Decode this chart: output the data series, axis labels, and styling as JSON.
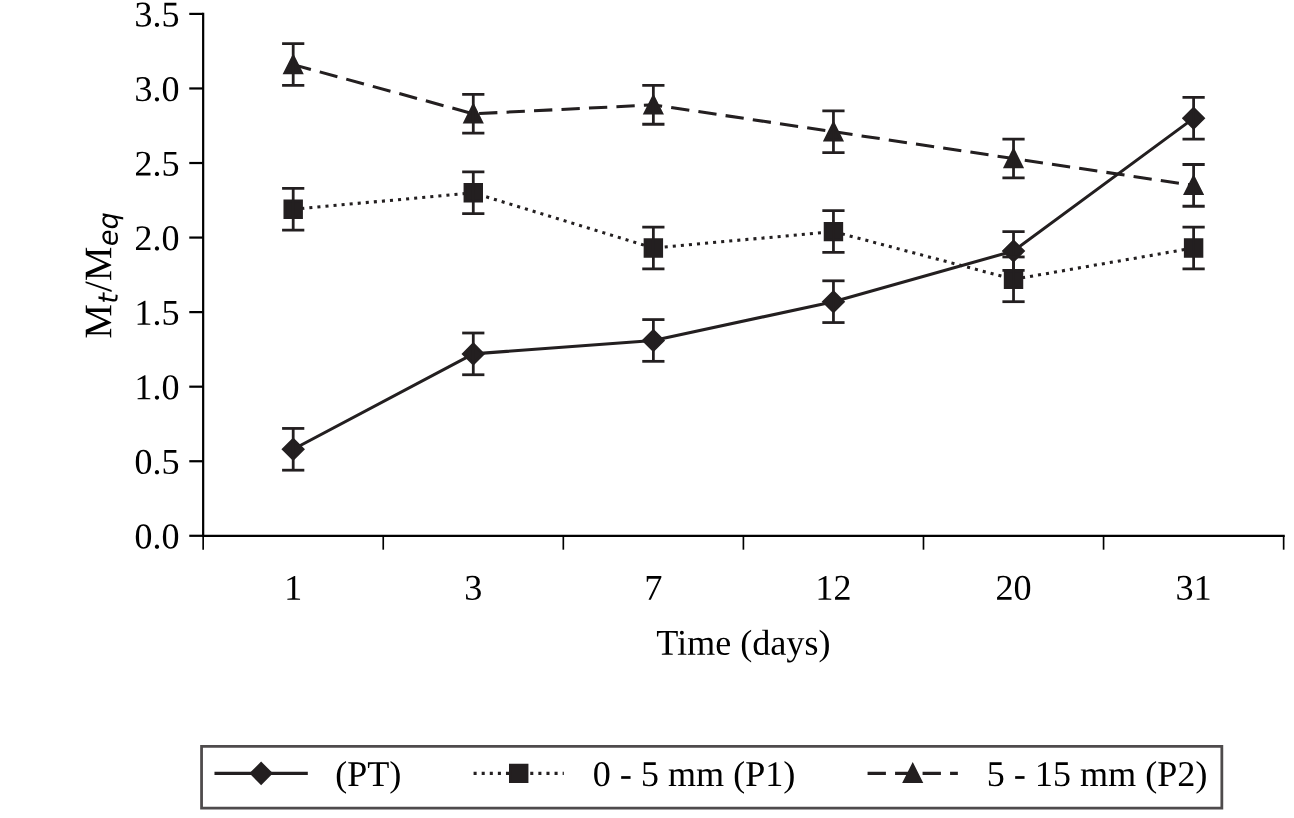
{
  "chart_data": {
    "type": "line",
    "xlabel": "Time (days)",
    "ylabel": "M$_{t}$/M$_{eq}$",
    "categories": [
      "1",
      "3",
      "7",
      "12",
      "20",
      "31"
    ],
    "ylim": [
      0,
      3.5
    ],
    "yticks": [
      {
        "value": 0,
        "label": "0.0"
      },
      {
        "value": 0.5,
        "label": "0.5"
      },
      {
        "value": 1,
        "label": "1.0"
      },
      {
        "value": 1.5,
        "label": "1.5"
      },
      {
        "value": 2,
        "label": "2.0"
      },
      {
        "value": 2.5,
        "label": "2.5"
      },
      {
        "value": 3,
        "label": "3.0"
      },
      {
        "value": 3.5,
        "label": "3.5"
      }
    ],
    "grid": false,
    "legend": "bottom",
    "series": [
      {
        "name": "(PT)",
        "color": "#231f20",
        "marker": "diamond",
        "line_style": "solid",
        "values": [
          0.58,
          1.22,
          1.31,
          1.57,
          1.91,
          2.8
        ],
        "errors": [
          0.14,
          0.14,
          0.14,
          0.14,
          0.13,
          0.14
        ]
      },
      {
        "name": "0 - 5 mm (P1)",
        "color": "#231f20",
        "marker": "square",
        "line_style": "dotted",
        "values": [
          2.19,
          2.3,
          1.93,
          2.04,
          1.72,
          1.93
        ],
        "errors": [
          0.14,
          0.14,
          0.14,
          0.14,
          0.15,
          0.14
        ]
      },
      {
        "name": "5 - 15 mm (P2)",
        "color": "#231f20",
        "marker": "triangle",
        "line_style": "dashed",
        "values": [
          3.16,
          2.83,
          2.89,
          2.71,
          2.53,
          2.35
        ],
        "errors": [
          0.14,
          0.13,
          0.13,
          0.14,
          0.13,
          0.14
        ]
      }
    ]
  }
}
